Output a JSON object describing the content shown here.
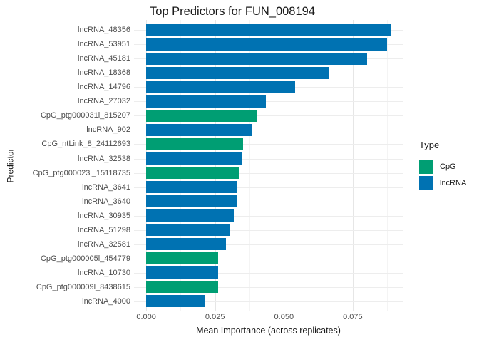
{
  "chart_data": {
    "type": "bar",
    "orientation": "horizontal",
    "title": "Top Predictors for FUN_008194",
    "xlabel": "Mean Importance (across replicates)",
    "ylabel": "Predictor",
    "categories": [
      "lncRNA_48356",
      "lncRNA_53951",
      "lncRNA_45181",
      "lncRNA_18368",
      "lncRNA_14796",
      "lncRNA_27032",
      "CpG_ptg000031l_815207",
      "lncRNA_902",
      "CpG_ntLink_8_24112693",
      "lncRNA_32538",
      "CpG_ptg000023l_15118735",
      "lncRNA_3641",
      "lncRNA_3640",
      "lncRNA_30935",
      "lncRNA_51298",
      "lncRNA_32581",
      "CpG_ptg000005l_454779",
      "lncRNA_10730",
      "CpG_ptg000009l_8438615",
      "lncRNA_4000"
    ],
    "values": [
      0.0887,
      0.0875,
      0.0801,
      0.0662,
      0.054,
      0.0435,
      0.0404,
      0.0385,
      0.0353,
      0.035,
      0.0336,
      0.033,
      0.0328,
      0.0319,
      0.0302,
      0.029,
      0.0262,
      0.0261,
      0.026,
      0.0211
    ],
    "types": [
      "lncRNA",
      "lncRNA",
      "lncRNA",
      "lncRNA",
      "lncRNA",
      "lncRNA",
      "CpG",
      "lncRNA",
      "CpG",
      "lncRNA",
      "CpG",
      "lncRNA",
      "lncRNA",
      "lncRNA",
      "lncRNA",
      "lncRNA",
      "CpG",
      "lncRNA",
      "CpG",
      "lncRNA"
    ],
    "x_major_ticks": [
      0,
      0.025,
      0.05,
      0.075
    ],
    "x_tick_labels": [
      "0.000",
      "0.025",
      "0.050",
      "0.075"
    ],
    "x_minor_ticks": [
      0.0125,
      0.0375,
      0.0625,
      0.0875
    ],
    "xlim": [
      0,
      0.0931
    ],
    "grid": true,
    "background": "#FFFFFF",
    "legend_position": "right",
    "legend": {
      "title": "Type",
      "entries": [
        {
          "label": "CpG",
          "color": "#009E73"
        },
        {
          "label": "lncRNA",
          "color": "#0072B2"
        }
      ]
    }
  }
}
